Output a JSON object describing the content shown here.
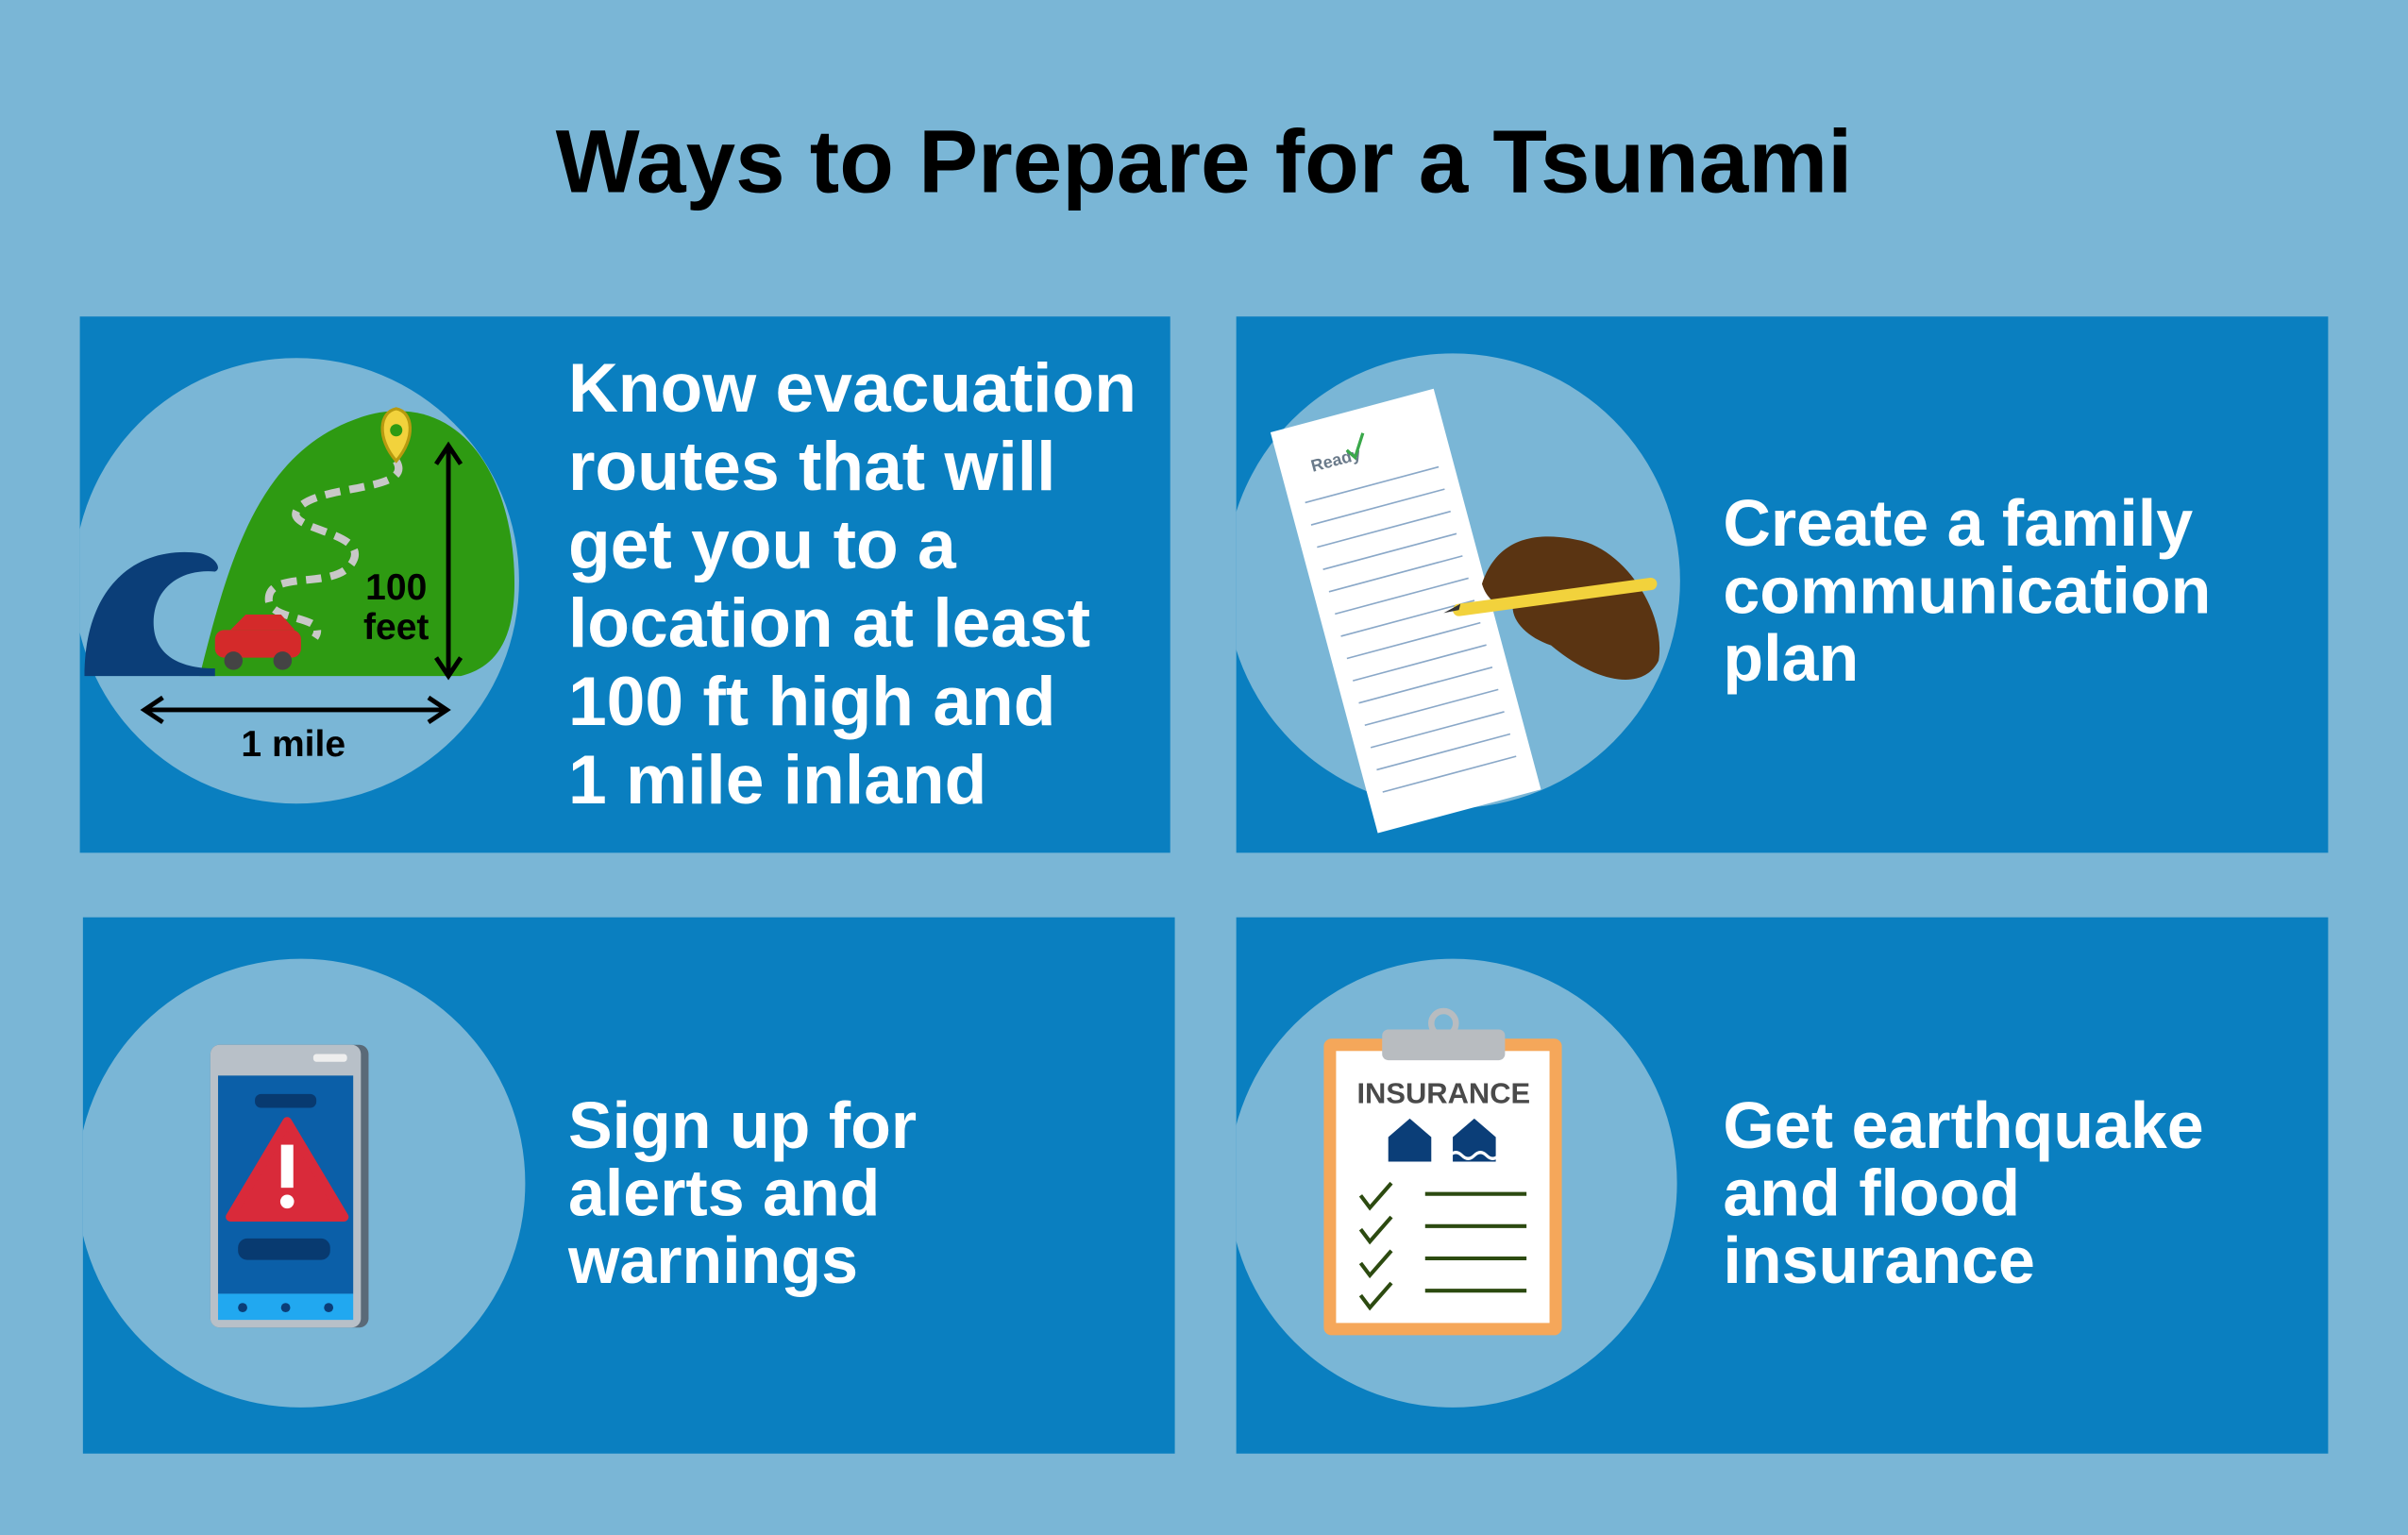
{
  "title": "Ways to Prepare for a Tsunami",
  "cards": [
    {
      "lines": [
        "Know evacuation",
        "routes that will",
        "get you to a",
        "location at least",
        "100 ft high and",
        "1 mile inland"
      ],
      "icon_labels": {
        "height": [
          "100",
          "feet"
        ],
        "distance": "1 mile"
      }
    },
    {
      "lines": [
        "Create a family",
        "communication",
        "plan"
      ],
      "icon_labels": {
        "form_logo": "Ready"
      }
    },
    {
      "lines": [
        "Sign up for",
        "alerts and",
        "warnings"
      ]
    },
    {
      "lines": [
        "Get earthquake",
        "and flood",
        "insurance"
      ],
      "icon_labels": {
        "clipboard": "INSURANCE"
      }
    }
  ]
}
